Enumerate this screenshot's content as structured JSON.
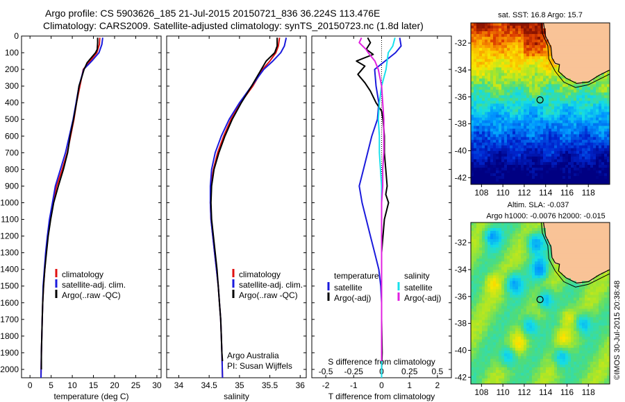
{
  "header": {
    "line1": "Argo profile: CS 5903626_185 21-Jul-2015 20150721_836 36.224S 113.476E",
    "line2": "Climatology: CARS2009. Satellite-adjusted climatology: synTS_20150723.nc (1.8d later)"
  },
  "colors": {
    "climatology": "#e01010",
    "satellite": "#1a1adc",
    "argo": "#000000",
    "sal_satellite": "#18e0ec",
    "sal_argo": "#e020e0"
  },
  "chart_data": [
    {
      "type": "line",
      "name": "temperature-profile",
      "xlabel": "temperature (deg C)",
      "xlim": [
        -2,
        31
      ],
      "xticks": [
        0,
        5,
        10,
        15,
        20,
        25,
        30
      ],
      "ylim": [
        2050,
        0
      ],
      "yticks": [
        0,
        100,
        200,
        300,
        400,
        500,
        600,
        700,
        800,
        900,
        1000,
        1100,
        1200,
        1300,
        1400,
        1500,
        1600,
        1700,
        1800,
        1900,
        2000
      ],
      "legend": [
        "climatology",
        "satellite-adj. clim.",
        "Argo(..raw -QC)"
      ],
      "series": [
        {
          "name": "climatology",
          "color": "#e01010",
          "points": [
            [
              16.5,
              10
            ],
            [
              16.4,
              50
            ],
            [
              15.8,
              100
            ],
            [
              14.2,
              150
            ],
            [
              12.6,
              200
            ],
            [
              11.8,
              300
            ],
            [
              11.0,
              400
            ],
            [
              10.4,
              500
            ],
            [
              9.6,
              600
            ],
            [
              8.8,
              700
            ],
            [
              7.6,
              800
            ],
            [
              6.3,
              900
            ],
            [
              5.4,
              1000
            ],
            [
              4.7,
              1100
            ],
            [
              4.2,
              1200
            ],
            [
              3.8,
              1300
            ],
            [
              3.5,
              1400
            ],
            [
              3.2,
              1500
            ],
            [
              3.0,
              1600
            ],
            [
              2.9,
              1700
            ],
            [
              2.8,
              1800
            ],
            [
              2.7,
              1900
            ],
            [
              2.6,
              2050
            ]
          ]
        },
        {
          "name": "satellite-adj. clim.",
          "color": "#1a1adc",
          "points": [
            [
              17.2,
              10
            ],
            [
              17.0,
              50
            ],
            [
              16.3,
              100
            ],
            [
              14.6,
              150
            ],
            [
              12.7,
              200
            ],
            [
              11.6,
              300
            ],
            [
              10.9,
              400
            ],
            [
              10.2,
              500
            ],
            [
              9.3,
              600
            ],
            [
              8.4,
              700
            ],
            [
              7.2,
              800
            ],
            [
              6.0,
              900
            ],
            [
              5.3,
              1000
            ],
            [
              4.6,
              1100
            ],
            [
              4.1,
              1200
            ],
            [
              3.7,
              1300
            ],
            [
              3.4,
              1400
            ],
            [
              3.1,
              1500
            ],
            [
              3.0,
              1600
            ],
            [
              2.9,
              1700
            ],
            [
              2.8,
              1800
            ],
            [
              2.7,
              1900
            ],
            [
              2.6,
              2050
            ]
          ]
        },
        {
          "name": "Argo(..raw -QC)",
          "color": "#000000",
          "points": [
            [
              16.0,
              10
            ],
            [
              16.0,
              40
            ],
            [
              15.9,
              80
            ],
            [
              15.5,
              100
            ],
            [
              13.5,
              160
            ],
            [
              12.8,
              200
            ],
            [
              12.2,
              250
            ],
            [
              11.6,
              300
            ],
            [
              11.0,
              400
            ],
            [
              10.3,
              500
            ],
            [
              9.5,
              600
            ],
            [
              8.9,
              700
            ],
            [
              7.9,
              800
            ],
            [
              6.7,
              900
            ],
            [
              5.6,
              1000
            ],
            [
              4.9,
              1100
            ],
            [
              4.3,
              1200
            ],
            [
              3.9,
              1300
            ],
            [
              3.5,
              1400
            ],
            [
              3.2,
              1500
            ],
            [
              3.0,
              1600
            ],
            [
              2.9,
              1700
            ],
            [
              2.8,
              1800
            ],
            [
              2.7,
              1900
            ],
            [
              2.7,
              2000
            ]
          ]
        }
      ]
    },
    {
      "type": "line",
      "name": "salinity-profile",
      "xlabel": "salinity",
      "xlim": [
        33.8,
        36.1
      ],
      "xticks": [
        34,
        34.5,
        35,
        35.5,
        36
      ],
      "ylim": [
        2050,
        0
      ],
      "legend": [
        "climatology",
        "satellite-adj. clim.",
        "Argo(..raw -QC)"
      ],
      "annotation": [
        "Argo Australia",
        "PI: Susan Wijffels"
      ],
      "series": [
        {
          "name": "climatology",
          "color": "#e01010",
          "points": [
            [
              35.66,
              10
            ],
            [
              35.64,
              60
            ],
            [
              35.6,
              100
            ],
            [
              35.5,
              150
            ],
            [
              35.38,
              200
            ],
            [
              35.22,
              300
            ],
            [
              35.02,
              400
            ],
            [
              34.86,
              500
            ],
            [
              34.74,
              600
            ],
            [
              34.64,
              700
            ],
            [
              34.57,
              800
            ],
            [
              34.53,
              900
            ],
            [
              34.52,
              1000
            ],
            [
              34.53,
              1100
            ],
            [
              34.56,
              1200
            ],
            [
              34.59,
              1300
            ],
            [
              34.62,
              1400
            ],
            [
              34.65,
              1500
            ],
            [
              34.67,
              1600
            ],
            [
              34.69,
              1700
            ],
            [
              34.7,
              1800
            ],
            [
              34.71,
              1900
            ],
            [
              34.72,
              2050
            ]
          ]
        },
        {
          "name": "satellite-adj. clim.",
          "color": "#1a1adc",
          "points": [
            [
              35.77,
              10
            ],
            [
              35.74,
              60
            ],
            [
              35.68,
              100
            ],
            [
              35.55,
              150
            ],
            [
              35.4,
              200
            ],
            [
              35.2,
              300
            ],
            [
              35.0,
              400
            ],
            [
              34.83,
              500
            ],
            [
              34.7,
              600
            ],
            [
              34.6,
              700
            ],
            [
              34.54,
              800
            ],
            [
              34.52,
              900
            ],
            [
              34.52,
              1000
            ],
            [
              34.53,
              1100
            ],
            [
              34.56,
              1200
            ],
            [
              34.59,
              1300
            ],
            [
              34.62,
              1400
            ],
            [
              34.65,
              1500
            ],
            [
              34.67,
              1600
            ],
            [
              34.69,
              1700
            ],
            [
              34.7,
              1800
            ],
            [
              34.71,
              1900
            ],
            [
              34.72,
              2050
            ]
          ]
        },
        {
          "name": "Argo(..raw -QC)",
          "color": "#000000",
          "points": [
            [
              35.62,
              10
            ],
            [
              35.62,
              60
            ],
            [
              35.58,
              100
            ],
            [
              35.44,
              150
            ],
            [
              35.36,
              200
            ],
            [
              35.2,
              300
            ],
            [
              35.03,
              400
            ],
            [
              34.88,
              500
            ],
            [
              34.76,
              600
            ],
            [
              34.66,
              700
            ],
            [
              34.58,
              800
            ],
            [
              34.54,
              900
            ],
            [
              34.53,
              1000
            ],
            [
              34.54,
              1100
            ],
            [
              34.57,
              1200
            ],
            [
              34.6,
              1300
            ],
            [
              34.63,
              1400
            ],
            [
              34.65,
              1500
            ],
            [
              34.67,
              1600
            ],
            [
              34.69,
              1700
            ],
            [
              34.7,
              1800
            ],
            [
              34.71,
              1900
            ],
            [
              34.72,
              1950
            ]
          ]
        }
      ]
    },
    {
      "type": "line",
      "name": "difference-profile",
      "xlabel": "T difference from climatology",
      "xlabel_top": "S difference from climatology",
      "xlim": [
        -2.5,
        2.5
      ],
      "xticks": [
        -2,
        -1,
        0,
        1,
        2
      ],
      "top_ticks": [
        "-0.5",
        "-0.25",
        "0",
        "0.25",
        "0.5"
      ],
      "top_tick_values": [
        -0.5,
        -0.25,
        0,
        0.25,
        0.5
      ],
      "ylim": [
        2050,
        0
      ],
      "legend_left_title": "temperature",
      "legend_right_title": "salinity",
      "legend": [
        "satellite",
        "Argo(-adj)",
        "satellite",
        "Argo(-adj)"
      ],
      "series": [
        {
          "name": "T satellite",
          "color": "#1a1adc",
          "points": [
            [
              0.65,
              10
            ],
            [
              0.7,
              60
            ],
            [
              0.5,
              100
            ],
            [
              -0.25,
              200
            ],
            [
              -0.2,
              300
            ],
            [
              -0.1,
              400
            ],
            [
              -0.15,
              500
            ],
            [
              -0.35,
              600
            ],
            [
              -0.5,
              700
            ],
            [
              -0.65,
              800
            ],
            [
              -0.8,
              900
            ],
            [
              -0.7,
              1000
            ],
            [
              -0.55,
              1100
            ],
            [
              -0.4,
              1200
            ],
            [
              -0.25,
              1300
            ],
            [
              -0.1,
              1400
            ],
            [
              -0.03,
              1500
            ],
            [
              0,
              1600
            ],
            [
              0,
              1700
            ],
            [
              0,
              1800
            ],
            [
              0,
              2050
            ]
          ]
        },
        {
          "name": "T Argo(-adj)",
          "color": "#000000",
          "points": [
            [
              -0.5,
              10
            ],
            [
              -0.4,
              40
            ],
            [
              -0.55,
              80
            ],
            [
              -0.3,
              110
            ],
            [
              -0.9,
              150
            ],
            [
              -0.6,
              180
            ],
            [
              -0.85,
              230
            ],
            [
              -0.6,
              280
            ],
            [
              -0.4,
              330
            ],
            [
              -0.2,
              400
            ],
            [
              0,
              450
            ],
            [
              0.05,
              500
            ],
            [
              0.1,
              600
            ],
            [
              0.1,
              700
            ],
            [
              0.15,
              800
            ],
            [
              0.2,
              900
            ],
            [
              0.15,
              950
            ],
            [
              0.25,
              1000
            ],
            [
              0.1,
              1100
            ],
            [
              0.05,
              1200
            ],
            [
              0,
              1300
            ],
            [
              0,
              1500
            ],
            [
              0,
              1700
            ],
            [
              0.02,
              1900
            ],
            [
              0,
              2000
            ]
          ]
        },
        {
          "name": "S satellite",
          "color": "#18e0ec",
          "points": [
            [
              0.12,
              10
            ],
            [
              0.1,
              60
            ],
            [
              0.06,
              100
            ],
            [
              0.04,
              200
            ],
            [
              0,
              300
            ],
            [
              -0.02,
              400
            ],
            [
              -0.03,
              500
            ],
            [
              -0.02,
              600
            ],
            [
              -0.02,
              700
            ],
            [
              -0.01,
              800
            ],
            [
              0,
              900
            ],
            [
              0,
              1000
            ],
            [
              0,
              1200
            ],
            [
              0,
              1500
            ],
            [
              0,
              1800
            ],
            [
              0,
              2050
            ]
          ]
        },
        {
          "name": "S Argo(-adj)",
          "color": "#e020e0",
          "points": [
            [
              -0.18,
              10
            ],
            [
              -0.2,
              40
            ],
            [
              -0.14,
              80
            ],
            [
              -0.12,
              100
            ],
            [
              -0.06,
              150
            ],
            [
              -0.03,
              200
            ],
            [
              0,
              300
            ],
            [
              0.01,
              400
            ],
            [
              0.02,
              500
            ],
            [
              0.02,
              600
            ],
            [
              0.02,
              700
            ],
            [
              0.01,
              800
            ],
            [
              0.01,
              900
            ],
            [
              0,
              1000
            ],
            [
              0,
              1200
            ],
            [
              0,
              1500
            ],
            [
              0,
              1800
            ],
            [
              0,
              1950
            ]
          ]
        }
      ]
    },
    {
      "type": "heatmap",
      "name": "sst-map",
      "title": "sat. SST: 16.8 Argo: 15.7",
      "xlim": [
        107,
        120
      ],
      "ylim": [
        -42.5,
        -30.5
      ],
      "xticks": [
        108,
        110,
        112,
        114,
        116,
        118
      ],
      "yticks": [
        -32,
        -34,
        -36,
        -38,
        -40,
        -42
      ],
      "float_position": [
        113.476,
        -36.224
      ]
    },
    {
      "type": "heatmap",
      "name": "sla-map",
      "title_line1": "Altim. SLA: -0.037",
      "title_line2": "Argo h1000: -0.0076 h2000: -0.015",
      "xlim": [
        107,
        120
      ],
      "ylim": [
        -42.5,
        -30.5
      ],
      "xticks": [
        108,
        110,
        112,
        114,
        116,
        118
      ],
      "yticks": [
        -32,
        -34,
        -36,
        -38,
        -40,
        -42
      ],
      "float_position": [
        113.476,
        -36.224
      ]
    }
  ],
  "credit": "©IMOS 30-Jul-2015 20:38:48"
}
